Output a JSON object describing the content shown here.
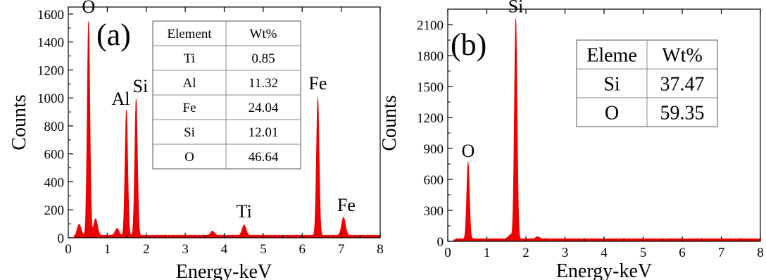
{
  "chart_data": [
    {
      "type": "area",
      "panel_label": "(a)",
      "xlabel": "Energy-keV",
      "ylabel": "Counts",
      "xlim": [
        0,
        8
      ],
      "ylim": [
        0,
        1650
      ],
      "xticks": [
        "0",
        "1",
        "2",
        "3",
        "4",
        "5",
        "6",
        "7",
        "8"
      ],
      "yticks": [
        "0",
        "200",
        "400",
        "600",
        "800",
        "1000",
        "1200",
        "1400",
        "1600"
      ],
      "color": "#ee0000",
      "series": [
        {
          "peaks": [
            {
              "x": 0.52,
              "y": 1540,
              "label": "O"
            },
            {
              "x": 1.49,
              "y": 900,
              "label": "Al"
            },
            {
              "x": 1.74,
              "y": 980,
              "label": "Si"
            },
            {
              "x": 4.51,
              "y": 75,
              "label": "Ti"
            },
            {
              "x": 6.4,
              "y": 990,
              "label": "Fe"
            },
            {
              "x": 7.06,
              "y": 130,
              "label": "Fe"
            },
            {
              "x": 0.28,
              "y": 80,
              "label": ""
            },
            {
              "x": 0.7,
              "y": 120,
              "label": ""
            },
            {
              "x": 1.25,
              "y": 50,
              "label": ""
            },
            {
              "x": 3.7,
              "y": 30,
              "label": ""
            }
          ]
        }
      ],
      "table": {
        "headers": [
          "Element",
          "Wt%"
        ],
        "rows": [
          [
            "Ti",
            "0.85"
          ],
          [
            "Al",
            "11.32"
          ],
          [
            "Fe",
            "24.04"
          ],
          [
            "Si",
            "12.01"
          ],
          [
            "O",
            "46.64"
          ]
        ]
      }
    },
    {
      "type": "area",
      "panel_label": "(b)",
      "xlabel": "Energy-keV",
      "ylabel": "Counts",
      "xlim": [
        0,
        8
      ],
      "ylim": [
        0,
        2250
      ],
      "xticks": [
        "0",
        "1",
        "2",
        "3",
        "4",
        "5",
        "6",
        "7",
        "8"
      ],
      "yticks": [
        "0",
        "300",
        "600",
        "900",
        "1200",
        "1500",
        "1800",
        "2100"
      ],
      "color": "#ee0000",
      "series": [
        {
          "peaks": [
            {
              "x": 0.52,
              "y": 750,
              "label": "O"
            },
            {
              "x": 1.74,
              "y": 2150,
              "label": "Si"
            },
            {
              "x": 1.6,
              "y": 40,
              "label": ""
            },
            {
              "x": 2.3,
              "y": 20,
              "label": ""
            }
          ]
        }
      ],
      "table": {
        "headers": [
          "Eleme",
          "Wt%"
        ],
        "rows": [
          [
            "Si",
            "37.47"
          ],
          [
            "O",
            "59.35"
          ]
        ]
      }
    }
  ]
}
